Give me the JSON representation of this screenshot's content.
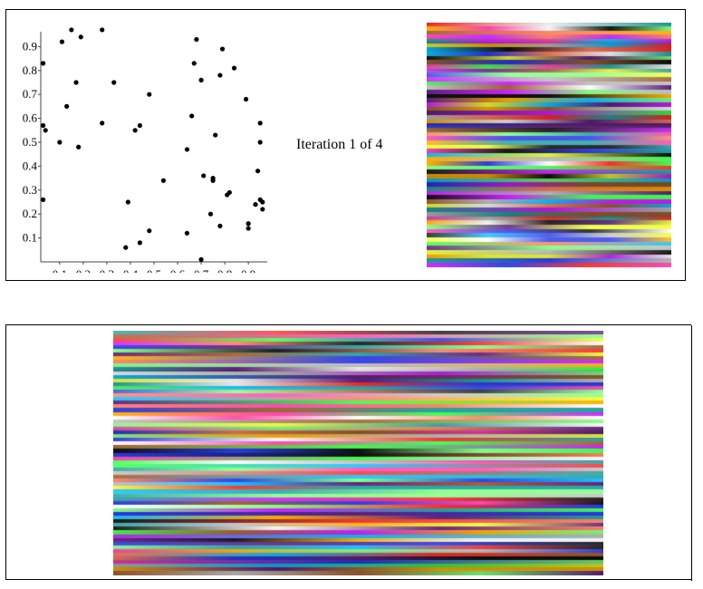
{
  "iteration": {
    "label": "Iteration 1 of 4"
  },
  "chart_data": {
    "type": "scatter",
    "title": "",
    "xlabel": "",
    "ylabel": "",
    "xlim": [
      0.02,
      0.98
    ],
    "ylim": [
      0.0,
      1.0
    ],
    "x_ticks": [
      0.1,
      0.2,
      0.3,
      0.4,
      0.5,
      0.6,
      0.7,
      0.8,
      0.9
    ],
    "y_ticks": [
      0.1,
      0.2,
      0.3,
      0.4,
      0.5,
      0.6,
      0.7,
      0.8,
      0.9
    ],
    "x_tick_labels": [
      "0.1",
      "0.2",
      "0.3",
      "0.4",
      "0.5",
      "0.6",
      "0.7",
      "0.8",
      "0.9"
    ],
    "y_tick_labels": [
      "0.1",
      "0.2",
      "0.3",
      "0.4",
      "0.5",
      "0.6",
      "0.7",
      "0.8",
      "0.9"
    ],
    "grid": false,
    "points": [
      [
        0.15,
        0.97
      ],
      [
        0.28,
        0.97
      ],
      [
        0.11,
        0.92
      ],
      [
        0.19,
        0.94
      ],
      [
        0.68,
        0.93
      ],
      [
        0.79,
        0.89
      ],
      [
        0.03,
        0.83
      ],
      [
        0.67,
        0.83
      ],
      [
        0.84,
        0.81
      ],
      [
        0.17,
        0.75
      ],
      [
        0.33,
        0.75
      ],
      [
        0.7,
        0.76
      ],
      [
        0.78,
        0.78
      ],
      [
        0.48,
        0.7
      ],
      [
        0.13,
        0.65
      ],
      [
        0.89,
        0.68
      ],
      [
        0.66,
        0.61
      ],
      [
        0.28,
        0.58
      ],
      [
        0.44,
        0.57
      ],
      [
        0.03,
        0.57
      ],
      [
        0.04,
        0.55
      ],
      [
        0.42,
        0.55
      ],
      [
        0.95,
        0.58
      ],
      [
        0.1,
        0.5
      ],
      [
        0.76,
        0.53
      ],
      [
        0.18,
        0.48
      ],
      [
        0.64,
        0.47
      ],
      [
        0.95,
        0.5
      ],
      [
        0.94,
        0.38
      ],
      [
        0.71,
        0.36
      ],
      [
        0.75,
        0.35
      ],
      [
        0.54,
        0.34
      ],
      [
        0.75,
        0.34
      ],
      [
        0.81,
        0.28
      ],
      [
        0.82,
        0.29
      ],
      [
        0.03,
        0.26
      ],
      [
        0.39,
        0.25
      ],
      [
        0.95,
        0.26
      ],
      [
        0.96,
        0.25
      ],
      [
        0.93,
        0.24
      ],
      [
        0.96,
        0.22
      ],
      [
        0.74,
        0.2
      ],
      [
        0.9,
        0.16
      ],
      [
        0.9,
        0.14
      ],
      [
        0.78,
        0.15
      ],
      [
        0.48,
        0.13
      ],
      [
        0.64,
        0.12
      ],
      [
        0.44,
        0.08
      ],
      [
        0.38,
        0.06
      ],
      [
        0.7,
        0.01
      ]
    ]
  }
}
